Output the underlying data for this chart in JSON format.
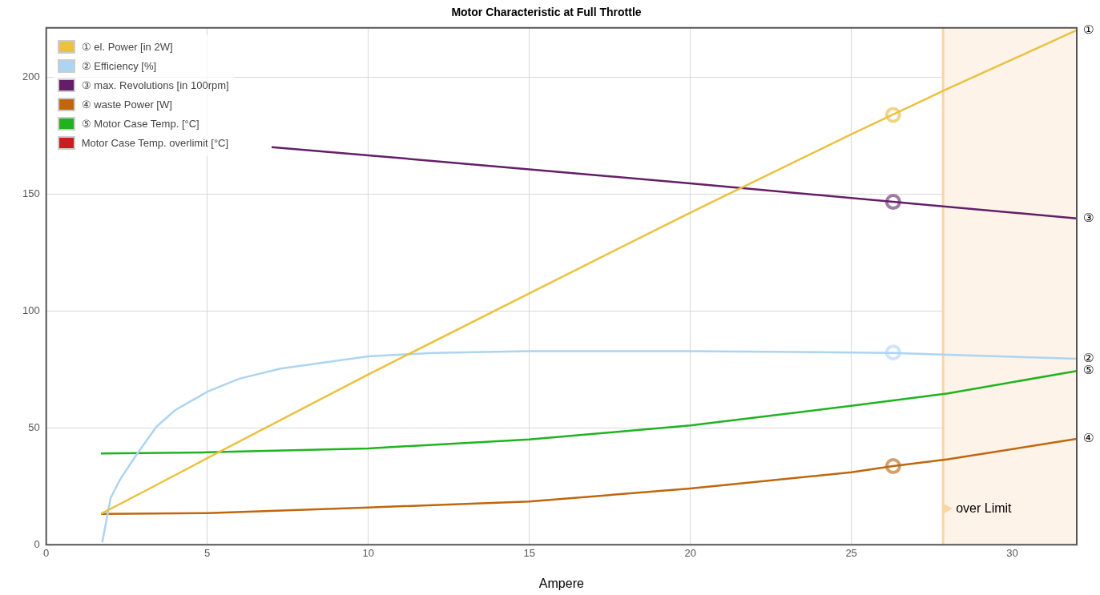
{
  "chart_data": {
    "type": "line",
    "title": "Motor Characteristic at Full Throttle",
    "xlabel": "Ampere",
    "xlim": [
      0,
      32
    ],
    "xticks": [
      0,
      5,
      10,
      15,
      20,
      25,
      30
    ],
    "ylim": [
      0,
      221
    ],
    "yticks": [
      0,
      50,
      100,
      150,
      200
    ],
    "grid": true,
    "legend": "top left",
    "marker": "none",
    "line_style": "solid",
    "series": [
      {
        "name": "① el. Power [in 2W]",
        "color": "#ebc13f",
        "x": [
          1.7,
          3,
          5,
          8,
          10,
          15,
          20,
          25,
          28,
          32
        ],
        "values": [
          13.2,
          22.5,
          37,
          58.5,
          72.8,
          107.5,
          142,
          175.5,
          195,
          220
        ]
      },
      {
        "name": "② Efficiency [%]",
        "color": "#acd4f3",
        "x": [
          1.74,
          2,
          2.3,
          2.77,
          3.42,
          4,
          5,
          6,
          7.28,
          10,
          12,
          15,
          20,
          26.3,
          28,
          32
        ],
        "values": [
          1,
          20,
          28,
          37.8,
          50.4,
          57.5,
          65.4,
          71,
          75.3,
          80.5,
          82,
          82.8,
          82.8,
          82,
          81.2,
          79.5
        ]
      },
      {
        "name": "③ max. Revolutions [in 100rpm]",
        "color": "#631e67",
        "x": [
          7,
          10,
          15,
          20,
          26.3,
          32
        ],
        "values": [
          170,
          166.5,
          160.5,
          154.5,
          146.6,
          139.5
        ]
      },
      {
        "name": "④ waste Power [W]",
        "color": "#c0660c",
        "x": [
          1.7,
          5,
          10,
          15,
          20,
          25,
          26.3,
          28,
          32
        ],
        "values": [
          13.2,
          13.5,
          15.9,
          18.5,
          24,
          31,
          33.6,
          36.5,
          45.3
        ]
      },
      {
        "name": "⑤ Motor Case Temp. [°C]",
        "color": "#1fb31f",
        "x": [
          1.7,
          5,
          10,
          15,
          20,
          25,
          28,
          32
        ],
        "values": [
          39,
          39.5,
          41.2,
          45,
          51,
          59.4,
          64.7,
          74.3
        ]
      },
      {
        "name": "Motor Case Temp. overlimit [°C]",
        "color": "#cc1c22"
      },
      {
        "type": "scatter",
        "marker": "circle",
        "x": [
          26.3,
          26.3,
          26.3,
          26.3
        ],
        "values": [
          183.8,
          82.2,
          146.6,
          33.6
        ],
        "colors": [
          "#efd58a",
          "#cfe4f6",
          "#a07aa5",
          "#d4a070"
        ]
      }
    ],
    "bands": [
      {
        "axis": "x",
        "from": 27.85,
        "to": 32,
        "label": "over Limit",
        "color": "#fdf3e8"
      }
    ],
    "ref_lines": [
      {
        "axis": "x",
        "value": 27.85,
        "color": "#fdd4a4"
      }
    ],
    "annotations": [
      "①",
      "②",
      "③",
      "④",
      "⑤"
    ]
  }
}
